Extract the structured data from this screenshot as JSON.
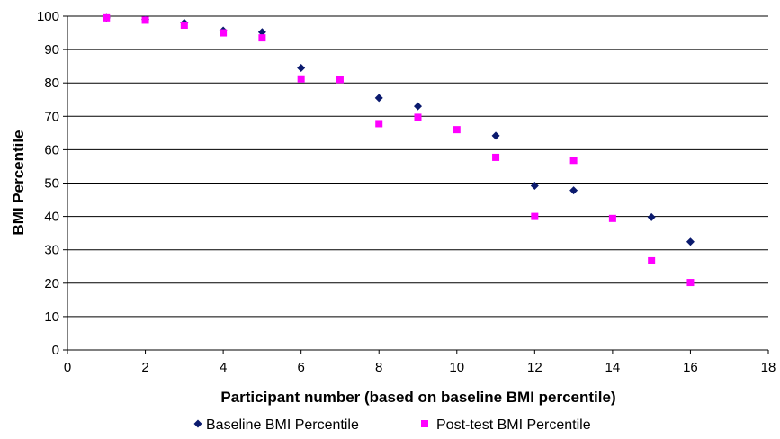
{
  "chart_data": {
    "type": "scatter",
    "title": "",
    "xlabel": "Participant number (based on baseline BMI percentile)",
    "ylabel": "BMI Percentile",
    "xlim": [
      0,
      18
    ],
    "ylim": [
      0,
      100
    ],
    "x_ticks": [
      "0",
      "2",
      "4",
      "6",
      "8",
      "10",
      "12",
      "14",
      "16",
      "18"
    ],
    "y_ticks": [
      "0",
      "10",
      "20",
      "30",
      "40",
      "50",
      "60",
      "70",
      "80",
      "90",
      "100"
    ],
    "grid": "horizontal",
    "legend_position": "bottom",
    "series": [
      {
        "name": "Baseline BMI Percentile",
        "marker": "diamond",
        "color": "#0b1a6e",
        "points": [
          {
            "x": 1,
            "y": 99.5
          },
          {
            "x": 2,
            "y": 99
          },
          {
            "x": 3,
            "y": 98
          },
          {
            "x": 4,
            "y": 95.7
          },
          {
            "x": 5,
            "y": 95.2
          },
          {
            "x": 6,
            "y": 84.5
          },
          {
            "x": 8,
            "y": 75.5
          },
          {
            "x": 9,
            "y": 73
          },
          {
            "x": 11,
            "y": 64.2
          },
          {
            "x": 12,
            "y": 49.2
          },
          {
            "x": 13,
            "y": 47.8
          },
          {
            "x": 15,
            "y": 39.8
          },
          {
            "x": 16,
            "y": 32.4
          }
        ]
      },
      {
        "name": "Post-test BMI Percentile",
        "marker": "square",
        "color": "#ff00ff",
        "points": [
          {
            "x": 1,
            "y": 99.5
          },
          {
            "x": 2,
            "y": 98.8
          },
          {
            "x": 3,
            "y": 97.3
          },
          {
            "x": 4,
            "y": 95
          },
          {
            "x": 5,
            "y": 93.5
          },
          {
            "x": 6,
            "y": 81.2
          },
          {
            "x": 7,
            "y": 81
          },
          {
            "x": 8,
            "y": 67.8
          },
          {
            "x": 9,
            "y": 69.7
          },
          {
            "x": 10,
            "y": 66
          },
          {
            "x": 11,
            "y": 57.7
          },
          {
            "x": 12,
            "y": 40
          },
          {
            "x": 13,
            "y": 56.8
          },
          {
            "x": 14,
            "y": 39.4
          },
          {
            "x": 15,
            "y": 26.7
          },
          {
            "x": 16,
            "y": 20.2
          }
        ]
      }
    ]
  }
}
